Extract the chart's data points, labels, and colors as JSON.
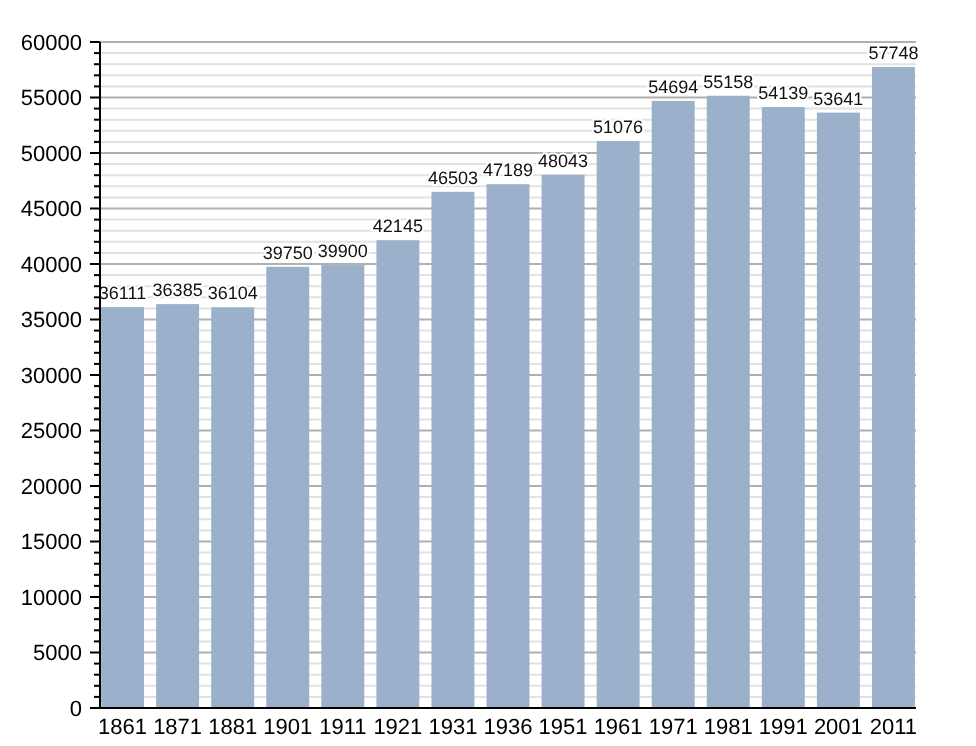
{
  "chart_data": {
    "type": "bar",
    "categories": [
      "1861",
      "1871",
      "1881",
      "1901",
      "1911",
      "1921",
      "1931",
      "1936",
      "1951",
      "1961",
      "1971",
      "1981",
      "1991",
      "2001",
      "2011"
    ],
    "values": [
      36111,
      36385,
      36104,
      39750,
      39900,
      42145,
      46503,
      47189,
      48043,
      51076,
      54694,
      55158,
      54139,
      53641,
      57748
    ],
    "color": "#9ab0cb",
    "data_labels": true,
    "grid": true,
    "ylim": [
      0,
      60000
    ],
    "yticks": [
      0,
      {
        "value": 1000,
        "label": null
      },
      {
        "value": 2000,
        "label": null
      },
      {
        "value": 3000,
        "label": null
      },
      {
        "value": 4000,
        "label": null
      },
      5000,
      {
        "value": 6000,
        "label": null
      },
      {
        "value": 7000,
        "label": null
      },
      {
        "value": 8000,
        "label": null
      },
      {
        "value": 9000,
        "label": null
      },
      10000,
      {
        "value": 11000,
        "label": null
      },
      {
        "value": 12000,
        "label": null
      },
      {
        "value": 13000,
        "label": null
      },
      {
        "value": 14000,
        "label": null
      },
      15000,
      {
        "value": 16000,
        "label": null
      },
      {
        "value": 17000,
        "label": null
      },
      {
        "value": 18000,
        "label": null
      },
      {
        "value": 19000,
        "label": null
      },
      20000,
      {
        "value": 21000,
        "label": null
      },
      {
        "value": 22000,
        "label": null
      },
      {
        "value": 23000,
        "label": null
      },
      {
        "value": 24000,
        "label": null
      },
      25000,
      {
        "value": 26000,
        "label": null
      },
      {
        "value": 27000,
        "label": null
      },
      {
        "value": 28000,
        "label": null
      },
      {
        "value": 29000,
        "label": null
      },
      30000,
      {
        "value": 31000,
        "label": null
      },
      {
        "value": 32000,
        "label": null
      },
      {
        "value": 33000,
        "label": null
      },
      {
        "value": 34000,
        "label": null
      },
      35000,
      {
        "value": 36000,
        "label": null
      },
      {
        "value": 37000,
        "label": null
      },
      {
        "value": 38000,
        "label": null
      },
      {
        "value": 39000,
        "label": null
      },
      40000,
      {
        "value": 41000,
        "label": null
      },
      {
        "value": 42000,
        "label": null
      },
      {
        "value": 43000,
        "label": null
      },
      {
        "value": 44000,
        "label": null
      },
      45000,
      {
        "value": 46000,
        "label": null
      },
      {
        "value": 47000,
        "label": null
      },
      {
        "value": 48000,
        "label": null
      },
      {
        "value": 49000,
        "label": null
      },
      50000,
      {
        "value": 51000,
        "label": null
      },
      {
        "value": 52000,
        "label": null
      },
      {
        "value": 53000,
        "label": null
      },
      {
        "value": 54000,
        "label": null
      },
      55000,
      {
        "value": 56000,
        "label": null
      },
      {
        "value": 57000,
        "label": null
      },
      {
        "value": 58000,
        "label": null
      },
      {
        "value": 59000,
        "label": null
      },
      60000
    ]
  }
}
